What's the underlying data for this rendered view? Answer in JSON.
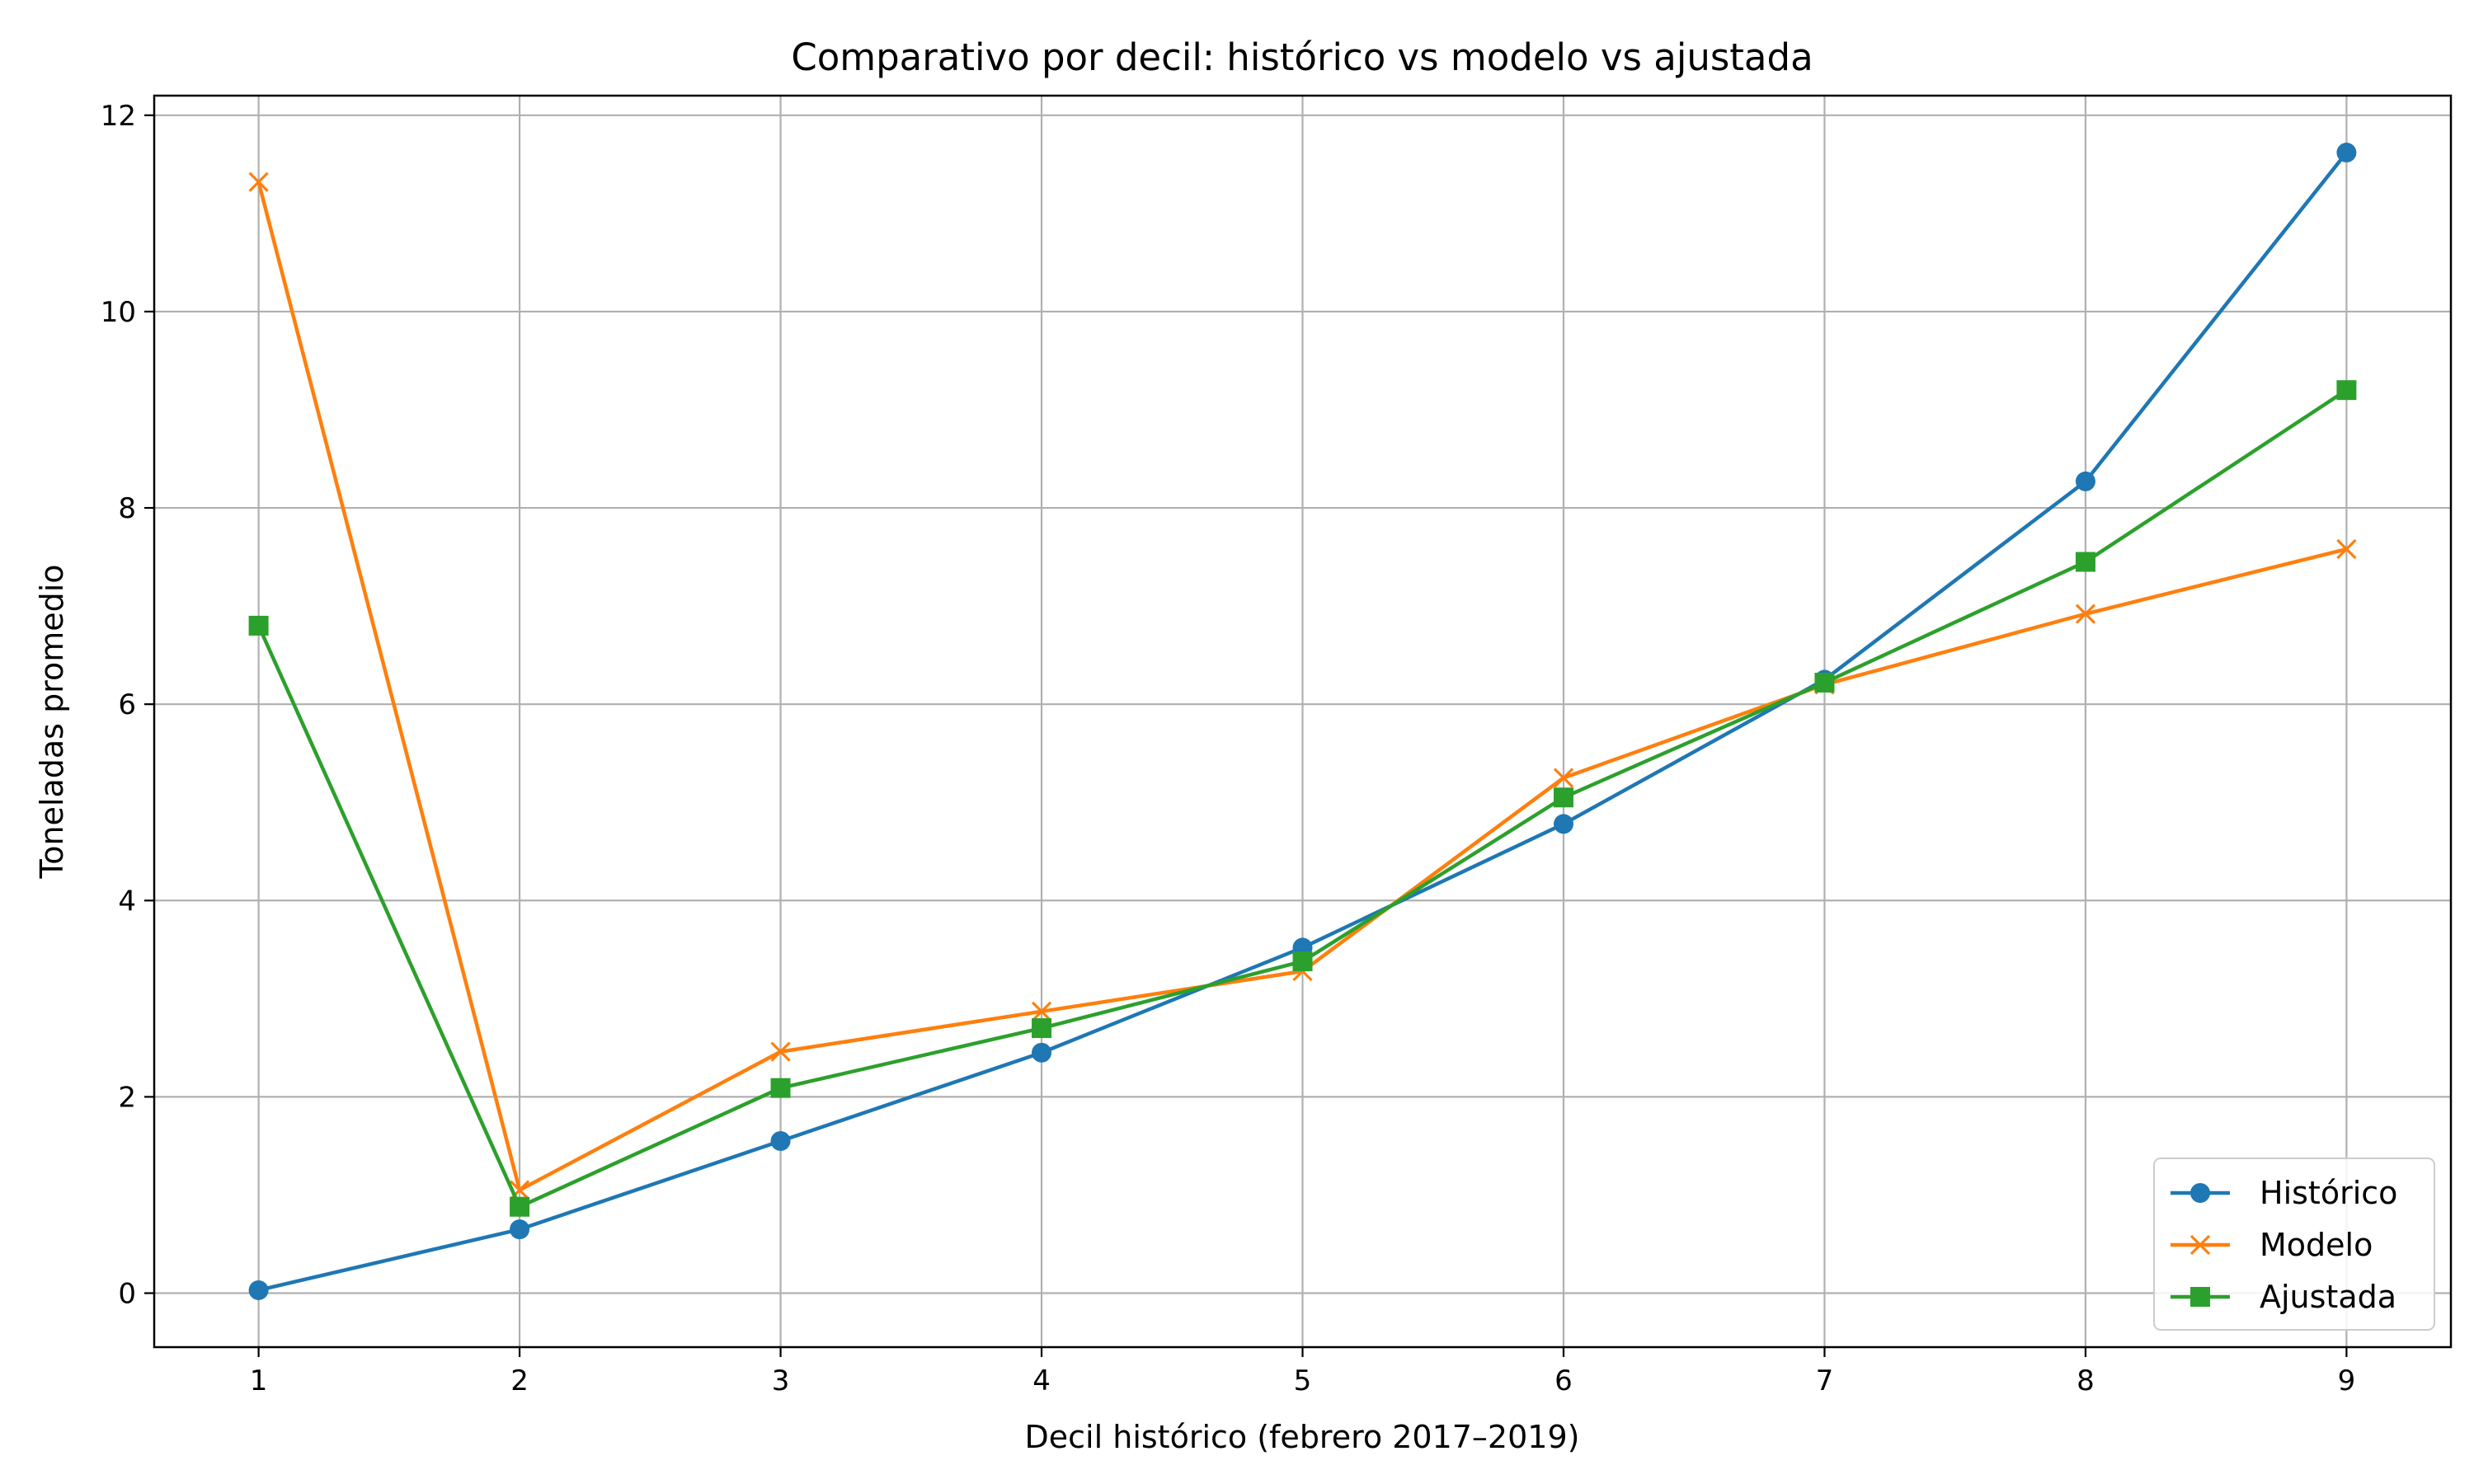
{
  "chart_data": {
    "type": "line",
    "title": "Comparativo por decil: histórico vs modelo vs ajustada",
    "xlabel": "Decil histórico (febrero 2017–2019)",
    "ylabel": "Toneladas promedio",
    "x": [
      1,
      2,
      3,
      4,
      5,
      6,
      7,
      8,
      9
    ],
    "xlim": [
      0.6,
      9.4
    ],
    "ylim": [
      -0.55,
      12.2
    ],
    "xticks": [
      1,
      2,
      3,
      4,
      5,
      6,
      7,
      8,
      9
    ],
    "yticks": [
      0,
      2,
      4,
      6,
      8,
      10,
      12
    ],
    "grid": true,
    "legend_position": "lower-right",
    "series": [
      {
        "name": "Histórico",
        "color": "#1f77b4",
        "marker": "circle",
        "values": [
          0.03,
          0.65,
          1.55,
          2.45,
          3.52,
          4.78,
          6.25,
          8.27,
          11.62
        ]
      },
      {
        "name": "Modelo",
        "color": "#ff7f0e",
        "marker": "x",
        "values": [
          11.32,
          1.05,
          2.46,
          2.87,
          3.28,
          5.25,
          6.2,
          6.92,
          7.58
        ]
      },
      {
        "name": "Ajustada",
        "color": "#2ca02c",
        "marker": "square",
        "values": [
          6.8,
          0.88,
          2.09,
          2.7,
          3.38,
          5.05,
          6.22,
          7.45,
          9.2
        ]
      }
    ]
  }
}
